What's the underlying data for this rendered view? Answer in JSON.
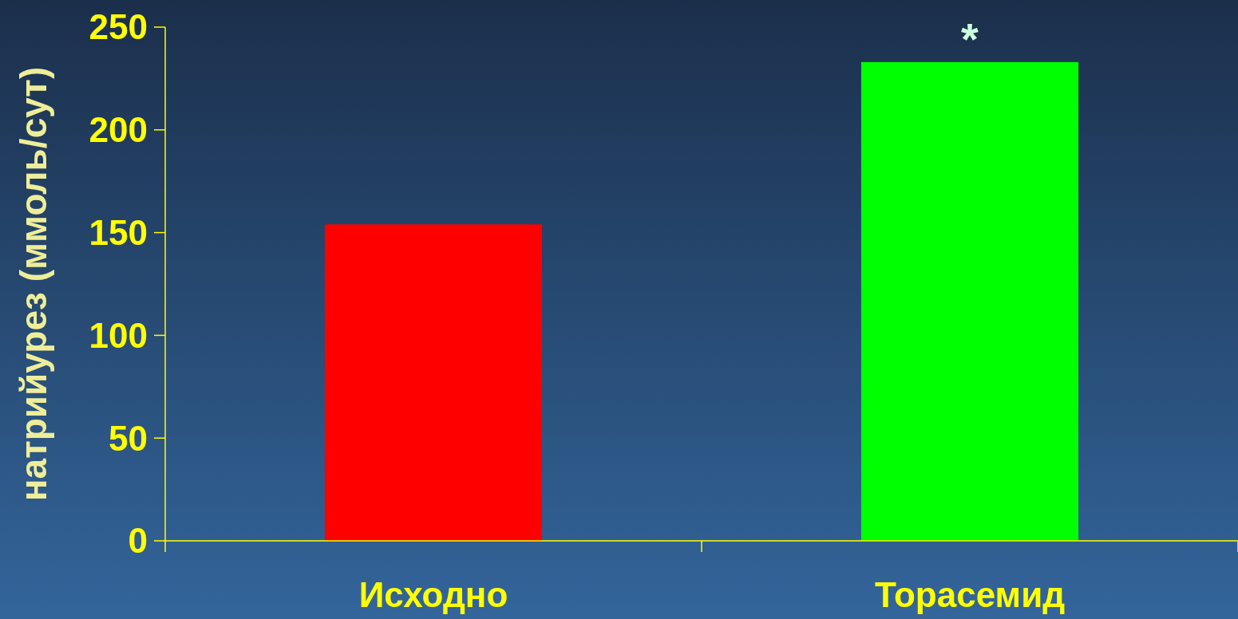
{
  "chart_data": {
    "type": "bar",
    "ylabel": "натрийурез (ммоль/сут)",
    "categories": [
      "Исходно",
      "Торасемид"
    ],
    "values": [
      154,
      233
    ],
    "colors": [
      "#ff0000",
      "#00ff00"
    ],
    "ylim": [
      0,
      250
    ],
    "yticks": [
      0,
      50,
      100,
      150,
      200,
      250
    ],
    "annotations": [
      {
        "text": "*",
        "x": "Торасемид",
        "y": 233
      }
    ],
    "grid": false
  }
}
